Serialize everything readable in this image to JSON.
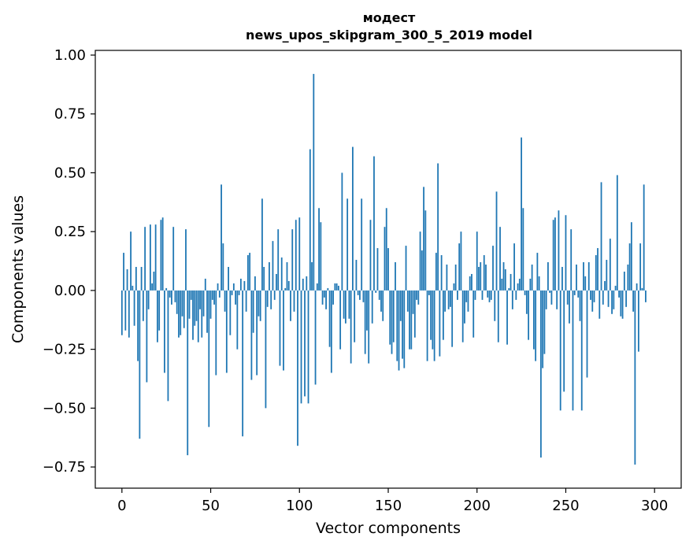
{
  "chart_data": {
    "type": "bar",
    "title": "модест",
    "subtitle": "news_upos_skipgram_300_5_2019 model",
    "xlabel": "Vector components",
    "ylabel": "Components values",
    "xlim": [
      -15,
      315
    ],
    "ylim": [
      -0.84,
      1.02
    ],
    "xticks": [
      0,
      50,
      100,
      150,
      200,
      250,
      300
    ],
    "yticks": [
      -0.75,
      -0.5,
      -0.25,
      0.0,
      0.25,
      0.5,
      0.75,
      1.0
    ],
    "ytick_labels": [
      "−0.75",
      "−0.50",
      "−0.25",
      "0.00",
      "0.25",
      "0.50",
      "0.75",
      "1.00"
    ],
    "xtick_labels": [
      "0",
      "50",
      "100",
      "150",
      "200",
      "250",
      "300"
    ],
    "bar_color": "#1f77b4",
    "values": [
      -0.19,
      0.16,
      -0.17,
      0.09,
      -0.2,
      0.25,
      0.02,
      -0.15,
      0.1,
      -0.3,
      -0.63,
      0.1,
      -0.13,
      0.27,
      -0.39,
      -0.08,
      0.28,
      0.03,
      0.08,
      0.28,
      -0.22,
      -0.17,
      0.3,
      0.31,
      -0.35,
      0.01,
      -0.47,
      -0.03,
      -0.06,
      0.27,
      -0.05,
      -0.1,
      -0.2,
      -0.19,
      -0.11,
      -0.16,
      0.26,
      -0.7,
      -0.12,
      -0.04,
      -0.21,
      -0.15,
      -0.13,
      -0.22,
      -0.08,
      -0.2,
      -0.11,
      0.05,
      -0.18,
      -0.58,
      -0.12,
      -0.04,
      -0.06,
      -0.36,
      0.03,
      -0.03,
      0.45,
      0.2,
      -0.09,
      -0.35,
      0.1,
      -0.19,
      -0.02,
      0.03,
      -0.06,
      -0.25,
      -0.02,
      0.05,
      -0.62,
      0.04,
      -0.09,
      0.15,
      0.16,
      -0.38,
      -0.18,
      0.06,
      -0.36,
      -0.11,
      -0.13,
      0.39,
      0.1,
      -0.5,
      -0.07,
      0.12,
      -0.08,
      0.21,
      -0.04,
      0.07,
      0.26,
      -0.32,
      0.14,
      -0.34,
      0.01,
      0.12,
      0.04,
      -0.13,
      0.26,
      -0.09,
      0.3,
      -0.66,
      0.31,
      -0.48,
      0.05,
      -0.45,
      0.06,
      -0.48,
      0.6,
      0.12,
      0.92,
      -0.4,
      0.03,
      0.35,
      0.29,
      -0.06,
      -0.03,
      -0.08,
      0.01,
      -0.24,
      -0.35,
      -0.06,
      0.03,
      0.03,
      0.02,
      -0.25,
      0.5,
      -0.12,
      -0.14,
      0.39,
      -0.12,
      -0.31,
      0.61,
      -0.22,
      0.13,
      -0.02,
      -0.04,
      0.39,
      -0.05,
      -0.27,
      -0.17,
      -0.31,
      0.3,
      -0.14,
      0.57,
      -0.01,
      0.18,
      -0.04,
      -0.09,
      -0.13,
      0.27,
      0.35,
      0.18,
      -0.23,
      -0.27,
      -0.22,
      0.12,
      -0.3,
      -0.34,
      -0.13,
      -0.29,
      -0.33,
      0.19,
      -0.09,
      -0.25,
      -0.25,
      -0.1,
      -0.2,
      -0.04,
      -0.06,
      0.25,
      0.17,
      0.44,
      0.34,
      -0.3,
      -0.02,
      -0.21,
      -0.25,
      -0.3,
      0.16,
      0.54,
      -0.28,
      0.15,
      -0.21,
      -0.09,
      0.11,
      -0.08,
      -0.07,
      -0.24,
      0.03,
      0.11,
      -0.04,
      0.2,
      0.25,
      -0.22,
      -0.14,
      -0.05,
      -0.09,
      0.06,
      0.07,
      -0.2,
      -0.04,
      0.25,
      0.1,
      0.12,
      -0.04,
      0.15,
      0.11,
      -0.03,
      -0.05,
      -0.04,
      0.19,
      -0.13,
      0.42,
      -0.22,
      0.27,
      0.05,
      0.12,
      0.09,
      -0.23,
      0.01,
      0.07,
      -0.08,
      0.2,
      -0.04,
      0.03,
      0.05,
      0.65,
      0.35,
      -0.02,
      -0.1,
      -0.21,
      0.05,
      0.11,
      -0.25,
      -0.3,
      0.16,
      0.06,
      -0.71,
      -0.33,
      -0.27,
      -0.08,
      0.12,
      -0.01,
      -0.06,
      0.3,
      0.31,
      -0.08,
      0.34,
      -0.51,
      0.1,
      -0.43,
      0.32,
      -0.06,
      -0.14,
      0.26,
      -0.51,
      -0.02,
      0.11,
      -0.03,
      -0.13,
      -0.51,
      0.12,
      0.06,
      -0.37,
      0.12,
      -0.04,
      -0.09,
      -0.05,
      0.15,
      0.18,
      -0.12,
      0.46,
      -0.06,
      0.04,
      0.13,
      -0.07,
      0.22,
      -0.1,
      -0.08,
      0.02,
      0.49,
      -0.03,
      -0.11,
      -0.12,
      0.08,
      -0.07,
      0.11,
      0.2,
      0.29,
      -0.09,
      -0.74,
      0.03,
      -0.26,
      0.2,
      0.01,
      0.45,
      -0.05
    ]
  }
}
